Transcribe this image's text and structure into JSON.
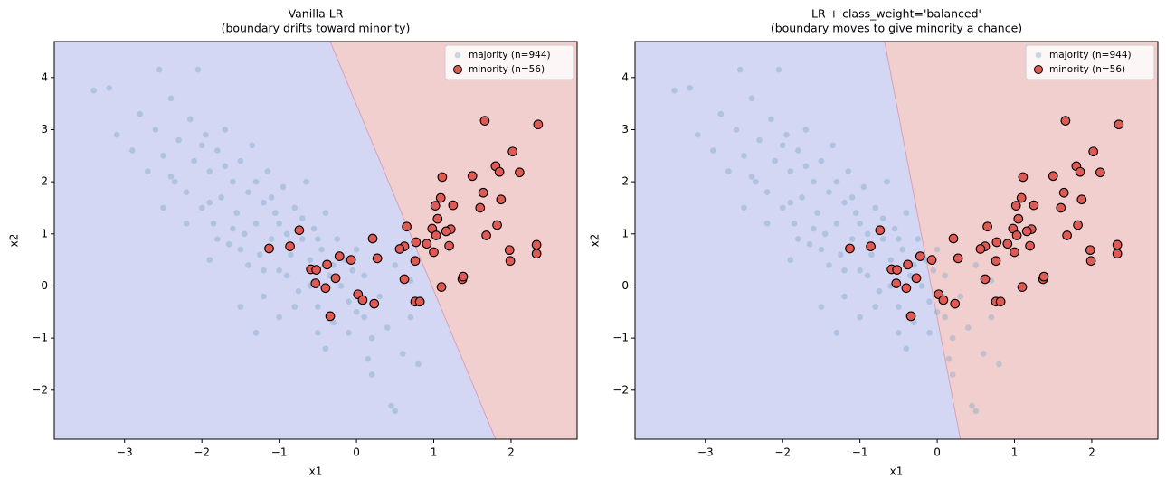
{
  "chart_data": [
    {
      "type": "scatter",
      "title": [
        "Vanilla LR",
        "(boundary drifts toward minority)"
      ],
      "xlabel": "x1",
      "ylabel": "x2",
      "xlim": [
        -3.91,
        2.855
      ],
      "ylim": [
        -2.94,
        4.69
      ],
      "xticks": [
        {
          "value": -3,
          "label": "−3"
        },
        {
          "value": -2,
          "label": "−2"
        },
        {
          "value": -1,
          "label": "−1"
        },
        0,
        1,
        2
      ],
      "yticks": [
        {
          "value": -2,
          "label": "−2"
        },
        {
          "value": -1,
          "label": "−1"
        },
        0,
        1,
        2,
        3,
        4
      ],
      "legend": "upper right",
      "region_colors": [
        "#d3d7f4",
        "#f2cfcf"
      ],
      "boundary": {
        "x": [
          -0.34,
          1.8
        ],
        "y": [
          4.69,
          -2.94
        ]
      },
      "series": [
        {
          "name": "majority (n=944)",
          "color": "#7aa6c2",
          "x": [
            -3.4,
            -3.2,
            -3.1,
            -2.9,
            -2.8,
            -2.7,
            -2.6,
            -2.55,
            -2.5,
            -2.4,
            -2.35,
            -2.3,
            -2.2,
            -2.15,
            -2.1,
            -2.05,
            -2.0,
            -1.95,
            -1.9,
            -1.85,
            -1.8,
            -1.75,
            -1.7,
            -1.65,
            -1.6,
            -1.55,
            -1.5,
            -1.45,
            -1.4,
            -1.35,
            -1.3,
            -1.25,
            -1.2,
            -1.15,
            -1.1,
            -1.05,
            -1.0,
            -0.95,
            -0.9,
            -0.85,
            -0.8,
            -0.75,
            -0.7,
            -0.65,
            -0.6,
            -0.55,
            -0.5,
            -0.45,
            -0.4,
            -0.35,
            -0.3,
            -0.25,
            -0.2,
            -0.15,
            -0.1,
            -0.05,
            0.0,
            0.1,
            0.2,
            0.3,
            0.4,
            0.5,
            0.6,
            0.7,
            0.8,
            -2.5,
            -2.2,
            -1.9,
            -1.7,
            -1.5,
            -1.3,
            -1.1,
            -0.9,
            -0.7,
            -0.5,
            -0.3,
            -0.1,
            0.1,
            -1.8,
            -1.6,
            -1.4,
            -1.2,
            -1.0,
            -0.8,
            -0.6,
            -2.0,
            -1.5,
            -1.0,
            -0.5,
            0.0,
            0.2,
            0.5,
            0.7,
            -1.2,
            -0.4,
            -2.4,
            -1.9,
            -1.3,
            0.15,
            0.45
          ],
          "values": [
            3.75,
            3.8,
            2.9,
            2.6,
            3.3,
            2.2,
            3.0,
            4.15,
            2.5,
            3.6,
            2.0,
            2.8,
            1.8,
            3.2,
            2.4,
            4.15,
            1.5,
            2.9,
            2.2,
            1.2,
            2.6,
            1.7,
            3.0,
            0.8,
            2.0,
            1.4,
            2.4,
            1.0,
            1.8,
            2.7,
            1.2,
            0.6,
            1.6,
            2.2,
            0.9,
            1.4,
            0.3,
            1.9,
            1.0,
            0.6,
            1.5,
            -0.1,
            0.9,
            2.0,
            0.5,
            1.1,
            -0.4,
            0.7,
            1.4,
            0.2,
            -0.7,
            0.9,
            0.0,
            0.5,
            -0.9,
            0.3,
            -0.5,
            0.2,
            -1.0,
            -0.2,
            -0.8,
            0.4,
            -1.3,
            -0.6,
            -1.5,
            1.5,
            1.2,
            1.6,
            2.3,
            0.7,
            2.0,
            1.7,
            0.2,
            1.3,
            0.9,
            0.4,
            -0.3,
            -0.6,
            0.9,
            1.1,
            0.4,
            -0.2,
            1.2,
            -0.4,
            0.0,
            2.7,
            -0.4,
            -0.6,
            -0.9,
            0.7,
            -1.7,
            -2.4,
            0.1,
            0.3,
            -1.2,
            2.1,
            0.5,
            -0.9,
            -1.4,
            -2.3
          ]
        },
        {
          "name": "minority (n=56)",
          "color": "#e05a55",
          "x": [
            1.66,
            2.35,
            2.02,
            1.8,
            1.85,
            2.11,
            1.5,
            1.11,
            1.64,
            1.09,
            1.87,
            1.02,
            1.25,
            1.6,
            1.05,
            0.65,
            1.82,
            0.98,
            1.22,
            1.16,
            -0.74,
            1.03,
            1.68,
            0.21,
            0.91,
            0.77,
            1.2,
            2.33,
            0.62,
            0.56,
            -0.86,
            -1.13,
            1.98,
            1.0,
            2.33,
            -0.22,
            0.27,
            -0.07,
            0.76,
            1.99,
            -0.38,
            -0.59,
            -0.52,
            0.62,
            -0.27,
            1.37,
            1.38,
            1.1,
            -0.53,
            -0.4,
            0.02,
            0.08,
            0.23,
            0.76,
            0.82,
            -0.34
          ],
          "values": [
            3.17,
            3.1,
            2.58,
            2.3,
            2.19,
            2.18,
            2.11,
            2.09,
            1.79,
            1.69,
            1.66,
            1.54,
            1.55,
            1.5,
            1.29,
            1.14,
            1.17,
            1.1,
            1.09,
            1.05,
            1.07,
            0.97,
            0.97,
            0.91,
            0.81,
            0.84,
            0.77,
            0.79,
            0.76,
            0.71,
            0.76,
            0.72,
            0.69,
            0.65,
            0.62,
            0.57,
            0.53,
            0.5,
            0.48,
            0.48,
            0.41,
            0.32,
            0.31,
            0.13,
            0.15,
            0.13,
            0.18,
            -0.02,
            0.05,
            -0.04,
            -0.16,
            -0.27,
            -0.34,
            -0.3,
            -0.3,
            -0.58
          ]
        }
      ]
    },
    {
      "type": "scatter",
      "title": [
        "LR + class_weight='balanced'",
        "(boundary moves to give minority a chance)"
      ],
      "xlabel": "x1",
      "ylabel": "x2",
      "xlim": [
        -3.91,
        2.855
      ],
      "ylim": [
        -2.94,
        4.69
      ],
      "xticks": [
        {
          "value": -3,
          "label": "−3"
        },
        {
          "value": -2,
          "label": "−2"
        },
        {
          "value": -1,
          "label": "−1"
        },
        0,
        1,
        2
      ],
      "yticks": [
        {
          "value": -2,
          "label": "−2"
        },
        {
          "value": -1,
          "label": "−1"
        },
        0,
        1,
        2,
        3,
        4
      ],
      "legend": "upper right",
      "region_colors": [
        "#d3d7f4",
        "#f2cfcf"
      ],
      "boundary": {
        "x": [
          -0.68,
          0.3
        ],
        "y": [
          4.69,
          -2.94
        ]
      },
      "series": [
        {
          "name": "majority (n=944)",
          "color": "#7aa6c2",
          "x": [
            -3.4,
            -3.2,
            -3.1,
            -2.9,
            -2.8,
            -2.7,
            -2.6,
            -2.55,
            -2.5,
            -2.4,
            -2.35,
            -2.3,
            -2.2,
            -2.15,
            -2.1,
            -2.05,
            -2.0,
            -1.95,
            -1.9,
            -1.85,
            -1.8,
            -1.75,
            -1.7,
            -1.65,
            -1.6,
            -1.55,
            -1.5,
            -1.45,
            -1.4,
            -1.35,
            -1.3,
            -1.25,
            -1.2,
            -1.15,
            -1.1,
            -1.05,
            -1.0,
            -0.95,
            -0.9,
            -0.85,
            -0.8,
            -0.75,
            -0.7,
            -0.65,
            -0.6,
            -0.55,
            -0.5,
            -0.45,
            -0.4,
            -0.35,
            -0.3,
            -0.25,
            -0.2,
            -0.15,
            -0.1,
            -0.05,
            0.0,
            0.1,
            0.2,
            0.3,
            0.4,
            0.5,
            0.6,
            0.7,
            0.8,
            -2.5,
            -2.2,
            -1.9,
            -1.7,
            -1.5,
            -1.3,
            -1.1,
            -0.9,
            -0.7,
            -0.5,
            -0.3,
            -0.1,
            0.1,
            -1.8,
            -1.6,
            -1.4,
            -1.2,
            -1.0,
            -0.8,
            -0.6,
            -2.0,
            -1.5,
            -1.0,
            -0.5,
            0.0,
            0.2,
            0.5,
            0.7,
            -1.2,
            -0.4,
            -2.4,
            -1.9,
            -1.3,
            0.15,
            0.45
          ],
          "values": [
            3.75,
            3.8,
            2.9,
            2.6,
            3.3,
            2.2,
            3.0,
            4.15,
            2.5,
            3.6,
            2.0,
            2.8,
            1.8,
            3.2,
            2.4,
            4.15,
            1.5,
            2.9,
            2.2,
            1.2,
            2.6,
            1.7,
            3.0,
            0.8,
            2.0,
            1.4,
            2.4,
            1.0,
            1.8,
            2.7,
            1.2,
            0.6,
            1.6,
            2.2,
            0.9,
            1.4,
            0.3,
            1.9,
            1.0,
            0.6,
            1.5,
            -0.1,
            0.9,
            2.0,
            0.5,
            1.1,
            -0.4,
            0.7,
            1.4,
            0.2,
            -0.7,
            0.9,
            0.0,
            0.5,
            -0.9,
            0.3,
            -0.5,
            0.2,
            -1.0,
            -0.2,
            -0.8,
            0.4,
            -1.3,
            -0.6,
            -1.5,
            1.5,
            1.2,
            1.6,
            2.3,
            0.7,
            2.0,
            1.7,
            0.2,
            1.3,
            0.9,
            0.4,
            -0.3,
            -0.6,
            0.9,
            1.1,
            0.4,
            -0.2,
            1.2,
            -0.4,
            0.0,
            2.7,
            -0.4,
            -0.6,
            -0.9,
            0.7,
            -1.7,
            -2.4,
            0.1,
            0.3,
            -1.2,
            2.1,
            0.5,
            -0.9,
            -1.4,
            -2.3
          ]
        },
        {
          "name": "minority (n=56)",
          "color": "#e05a55",
          "x": [
            1.66,
            2.35,
            2.02,
            1.8,
            1.85,
            2.11,
            1.5,
            1.11,
            1.64,
            1.09,
            1.87,
            1.02,
            1.25,
            1.6,
            1.05,
            0.65,
            1.82,
            0.98,
            1.22,
            1.16,
            -0.74,
            1.03,
            1.68,
            0.21,
            0.91,
            0.77,
            1.2,
            2.33,
            0.62,
            0.56,
            -0.86,
            -1.13,
            1.98,
            1.0,
            2.33,
            -0.22,
            0.27,
            -0.07,
            0.76,
            1.99,
            -0.38,
            -0.59,
            -0.52,
            0.62,
            -0.27,
            1.37,
            1.38,
            1.1,
            -0.53,
            -0.4,
            0.02,
            0.08,
            0.23,
            0.76,
            0.82,
            -0.34
          ],
          "values": [
            3.17,
            3.1,
            2.58,
            2.3,
            2.19,
            2.18,
            2.11,
            2.09,
            1.79,
            1.69,
            1.66,
            1.54,
            1.55,
            1.5,
            1.29,
            1.14,
            1.17,
            1.1,
            1.09,
            1.05,
            1.07,
            0.97,
            0.97,
            0.91,
            0.81,
            0.84,
            0.77,
            0.79,
            0.76,
            0.71,
            0.76,
            0.72,
            0.69,
            0.65,
            0.62,
            0.57,
            0.53,
            0.5,
            0.48,
            0.48,
            0.41,
            0.32,
            0.31,
            0.13,
            0.15,
            0.13,
            0.18,
            -0.02,
            0.05,
            -0.04,
            -0.16,
            -0.27,
            -0.34,
            -0.3,
            -0.3,
            -0.58
          ]
        }
      ]
    }
  ]
}
